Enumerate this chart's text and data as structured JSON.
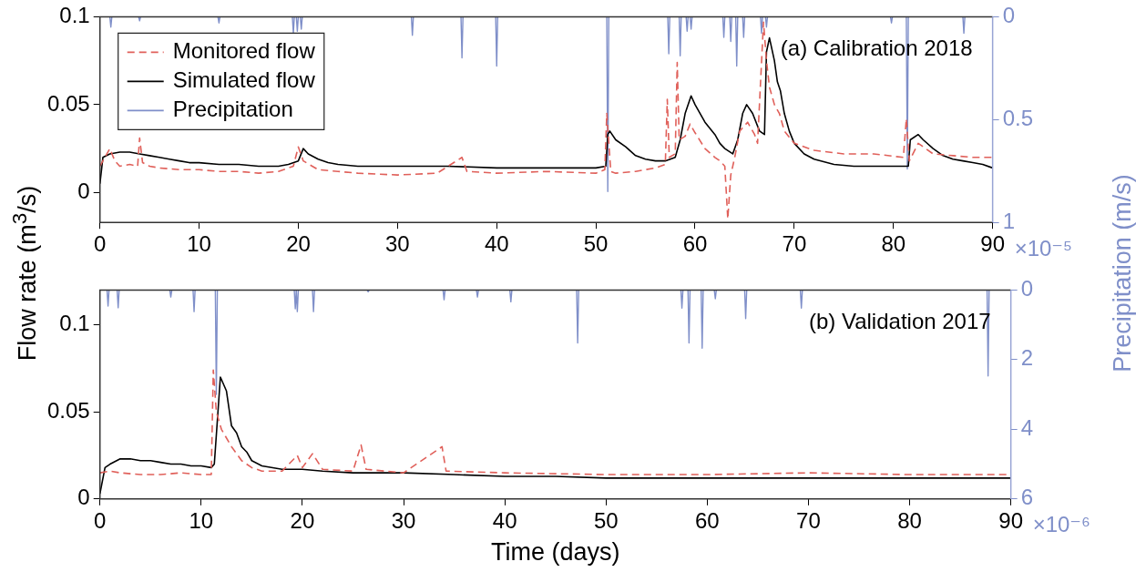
{
  "chart_data": [
    {
      "type": "line",
      "title": "(a) Calibration 2018",
      "ylabel": "Flow rate (m$^{3}$/s)",
      "y2label": "Precipitation (m/s)",
      "xlim": [
        0,
        90
      ],
      "xticks": [
        0,
        10,
        20,
        30,
        40,
        50,
        60,
        70,
        80,
        90
      ],
      "ylim": [
        -0.017,
        0.1
      ],
      "yticks": [
        0,
        0.05,
        0.1
      ],
      "y2lim": [
        1,
        0
      ],
      "y2ticks": [
        0,
        0.5,
        1
      ],
      "legend": "top left",
      "annotations": [
        "×10⁻⁵"
      ],
      "series": [
        {
          "name": "Monitored flow",
          "color": "#e0605a",
          "line_style": "dashed",
          "x": [
            0,
            0.5,
            1,
            1.5,
            2,
            3,
            3.8,
            4,
            4.3,
            5,
            6,
            8,
            10,
            12,
            14,
            16,
            18,
            19.5,
            20,
            20.5,
            22,
            24,
            26,
            30,
            34,
            36.5,
            37,
            40,
            45,
            50,
            50.9,
            51.1,
            51.5,
            52,
            54,
            56,
            57,
            57.2,
            57.4,
            58,
            58.2,
            58.4,
            59,
            59.5,
            60,
            61,
            62,
            62.5,
            63,
            63.3,
            63.6,
            64,
            64.5,
            65.3,
            66,
            66.3,
            66.9,
            67.2,
            67.5,
            68,
            68.5,
            69,
            70,
            72,
            75,
            78,
            81,
            81.3,
            81.6,
            82.5,
            84,
            86,
            88,
            90
          ],
          "values": [
            0.015,
            0.02,
            0.025,
            0.018,
            0.015,
            0.016,
            0.015,
            0.031,
            0.017,
            0.015,
            0.014,
            0.013,
            0.013,
            0.012,
            0.012,
            0.011,
            0.012,
            0.015,
            0.026,
            0.018,
            0.013,
            0.012,
            0.011,
            0.01,
            0.011,
            0.02,
            0.012,
            0.011,
            0.012,
            0.011,
            0.013,
            0.045,
            0.012,
            0.011,
            0.012,
            0.014,
            0.016,
            0.053,
            0.02,
            0.022,
            0.074,
            0.03,
            0.032,
            0.039,
            0.034,
            0.025,
            0.02,
            0.018,
            0.015,
            -0.015,
            0.01,
            0.02,
            0.035,
            0.04,
            0.033,
            0.028,
            0.097,
            0.075,
            0.06,
            0.05,
            0.045,
            0.035,
            0.028,
            0.024,
            0.022,
            0.022,
            0.02,
            0.042,
            0.018,
            0.028,
            0.022,
            0.021,
            0.02,
            0.02
          ]
        },
        {
          "name": "Simulated flow",
          "color": "#000000",
          "line_style": "solid",
          "x": [
            0,
            0.3,
            1,
            2,
            3,
            4,
            5,
            6,
            7,
            8,
            9,
            10,
            12,
            14,
            16,
            18,
            19,
            20,
            20.5,
            21,
            22,
            23,
            24,
            26,
            28,
            30,
            35,
            40,
            45,
            50,
            51,
            51.2,
            51.4,
            52,
            53,
            54,
            55,
            56,
            57,
            58,
            58.5,
            59,
            59.6,
            60,
            61,
            62,
            62.5,
            63,
            63.8,
            64.3,
            64.8,
            65.2,
            65.8,
            66.5,
            67,
            67.2,
            67.5,
            68,
            68.3,
            68.6,
            69,
            69.5,
            70,
            71,
            72,
            74,
            76,
            78,
            80,
            81,
            81.5,
            81.7,
            82.5,
            83,
            84,
            85,
            86,
            87,
            88,
            89,
            90
          ],
          "values": [
            0.005,
            0.02,
            0.022,
            0.023,
            0.023,
            0.022,
            0.021,
            0.02,
            0.019,
            0.018,
            0.017,
            0.017,
            0.016,
            0.016,
            0.015,
            0.015,
            0.016,
            0.018,
            0.025,
            0.022,
            0.019,
            0.017,
            0.016,
            0.015,
            0.015,
            0.015,
            0.015,
            0.014,
            0.014,
            0.014,
            0.015,
            0.033,
            0.035,
            0.03,
            0.026,
            0.021,
            0.019,
            0.018,
            0.018,
            0.02,
            0.03,
            0.045,
            0.055,
            0.05,
            0.04,
            0.033,
            0.028,
            0.025,
            0.022,
            0.03,
            0.045,
            0.05,
            0.045,
            0.035,
            0.033,
            0.08,
            0.088,
            0.075,
            0.063,
            0.058,
            0.045,
            0.035,
            0.028,
            0.022,
            0.019,
            0.016,
            0.015,
            0.015,
            0.015,
            0.015,
            0.015,
            0.03,
            0.033,
            0.03,
            0.025,
            0.021,
            0.019,
            0.018,
            0.017,
            0.016,
            0.014
          ]
        },
        {
          "name": "Precipitation",
          "color": "#7f8fc9",
          "axis": "y2",
          "line_style": "solid",
          "x": [
            0,
            1,
            1.1,
            1.2,
            3.9,
            4,
            4.1,
            11.9,
            12,
            12.1,
            19.4,
            19.5,
            19.6,
            19.8,
            19.9,
            20,
            20.2,
            20.3,
            20.4,
            31.4,
            31.5,
            31.6,
            36.4,
            36.5,
            36.6,
            39.9,
            40,
            40.1,
            51.1,
            51.2,
            51.3,
            57.25,
            57.35,
            57.45,
            58.4,
            58.5,
            58.6,
            59.1,
            59.2,
            59.3,
            59.5,
            59.6,
            59.7,
            62.8,
            62.9,
            63,
            63.5,
            63.6,
            63.7,
            64.1,
            64.2,
            64.3,
            64.8,
            64.9,
            65,
            66.6,
            66.7,
            66.8,
            67.1,
            67.2,
            67.3,
            79.7,
            79.8,
            79.9,
            81.3,
            81.4,
            81.5,
            87,
            87.1,
            87.2,
            90
          ],
          "values": [
            0,
            0,
            0.05,
            0,
            0,
            0.02,
            0,
            0,
            0.03,
            0,
            0,
            0.08,
            0,
            0,
            0.07,
            0,
            0,
            0.06,
            0,
            0,
            0.09,
            0,
            0,
            0.2,
            0,
            0,
            0.24,
            0,
            0,
            0.85,
            0,
            0,
            0.18,
            0,
            0,
            0.19,
            0,
            0,
            0.07,
            0,
            0,
            0.06,
            0,
            0,
            0.1,
            0,
            0,
            0.12,
            0,
            0,
            0.24,
            0,
            0,
            0.1,
            0,
            0,
            0.08,
            0,
            0,
            0.05,
            0,
            0,
            0.03,
            0,
            0,
            0.74,
            0,
            0,
            0.08,
            0,
            0
          ]
        }
      ]
    },
    {
      "type": "line",
      "title": "(b) Validation 2017",
      "xlabel": "Time (days)",
      "xlim": [
        0,
        90
      ],
      "xticks": [
        0,
        10,
        20,
        30,
        40,
        50,
        60,
        70,
        80,
        90
      ],
      "ylim": [
        0,
        0.12
      ],
      "yticks": [
        0,
        0.05,
        0.1
      ],
      "y2lim": [
        6,
        0
      ],
      "y2ticks": [
        0,
        2,
        4,
        6
      ],
      "annotations": [
        "×10⁻⁶"
      ],
      "series": [
        {
          "color": "#e0605a",
          "line_style": "dashed",
          "x": [
            0,
            1,
            2,
            4,
            6,
            8,
            10,
            11,
            11.2,
            11.5,
            12,
            13,
            14,
            15,
            16,
            18,
            19.5,
            20,
            21,
            22,
            25,
            25.8,
            26.3,
            30,
            33.8,
            34.2,
            40,
            50,
            60,
            70,
            80,
            90
          ],
          "values": [
            0.015,
            0.016,
            0.015,
            0.014,
            0.014,
            0.015,
            0.014,
            0.014,
            0.074,
            0.05,
            0.04,
            0.03,
            0.022,
            0.018,
            0.016,
            0.016,
            0.025,
            0.018,
            0.026,
            0.017,
            0.016,
            0.031,
            0.017,
            0.015,
            0.03,
            0.016,
            0.015,
            0.014,
            0.014,
            0.015,
            0.014,
            0.014
          ]
        },
        {
          "color": "#000000",
          "line_style": "solid",
          "x": [
            0,
            0.5,
            1,
            2,
            3,
            4,
            5,
            6,
            7,
            8,
            9,
            10,
            11,
            11.3,
            11.9,
            12.5,
            13,
            13.5,
            14,
            14.5,
            15,
            16,
            18,
            20,
            22,
            25,
            30,
            35,
            40,
            45,
            50,
            60,
            70,
            80,
            90
          ],
          "values": [
            0.003,
            0.018,
            0.02,
            0.023,
            0.023,
            0.022,
            0.022,
            0.021,
            0.02,
            0.02,
            0.019,
            0.019,
            0.018,
            0.02,
            0.07,
            0.062,
            0.042,
            0.038,
            0.03,
            0.027,
            0.022,
            0.019,
            0.017,
            0.017,
            0.016,
            0.015,
            0.015,
            0.014,
            0.013,
            0.013,
            0.012,
            0.012,
            0.012,
            0.012,
            0.012
          ]
        },
        {
          "color": "#7f8fc9",
          "axis": "y2",
          "line_style": "solid",
          "x": [
            0,
            0.7,
            0.8,
            0.9,
            1.7,
            1.8,
            1.9,
            6.9,
            7,
            7.1,
            9.2,
            9.3,
            9.4,
            11.4,
            11.5,
            11.6,
            19.2,
            19.3,
            19.4,
            19.45,
            19.5,
            19.6,
            21,
            21.1,
            21.2,
            26.4,
            26.5,
            26.6,
            33.9,
            34,
            34.1,
            37.2,
            37.3,
            37.4,
            40.5,
            40.6,
            40.7,
            47.1,
            47.2,
            47.3,
            57.4,
            57.5,
            57.6,
            58.1,
            58.2,
            58.3,
            59.4,
            59.5,
            59.6,
            60.7,
            60.8,
            60.9,
            63.7,
            63.8,
            63.9,
            69.2,
            69.3,
            69.4,
            87.65,
            87.75,
            87.85,
            90
          ],
          "values": [
            0,
            0,
            0.46,
            0,
            0,
            0.51,
            0,
            0,
            0.2,
            0,
            0,
            0.62,
            0,
            0,
            3,
            0,
            0,
            0.54,
            0,
            0,
            0.62,
            0,
            0,
            0.62,
            0,
            0,
            0.05,
            0,
            0,
            0.28,
            0,
            0,
            0.2,
            0,
            0,
            0.34,
            0,
            0,
            1.52,
            0,
            0,
            0.52,
            0,
            0,
            1.52,
            0,
            0,
            1.67,
            0,
            0,
            0.25,
            0,
            0,
            0.82,
            0,
            0,
            0.52,
            0,
            0,
            2.47,
            0,
            0
          ]
        }
      ]
    }
  ]
}
